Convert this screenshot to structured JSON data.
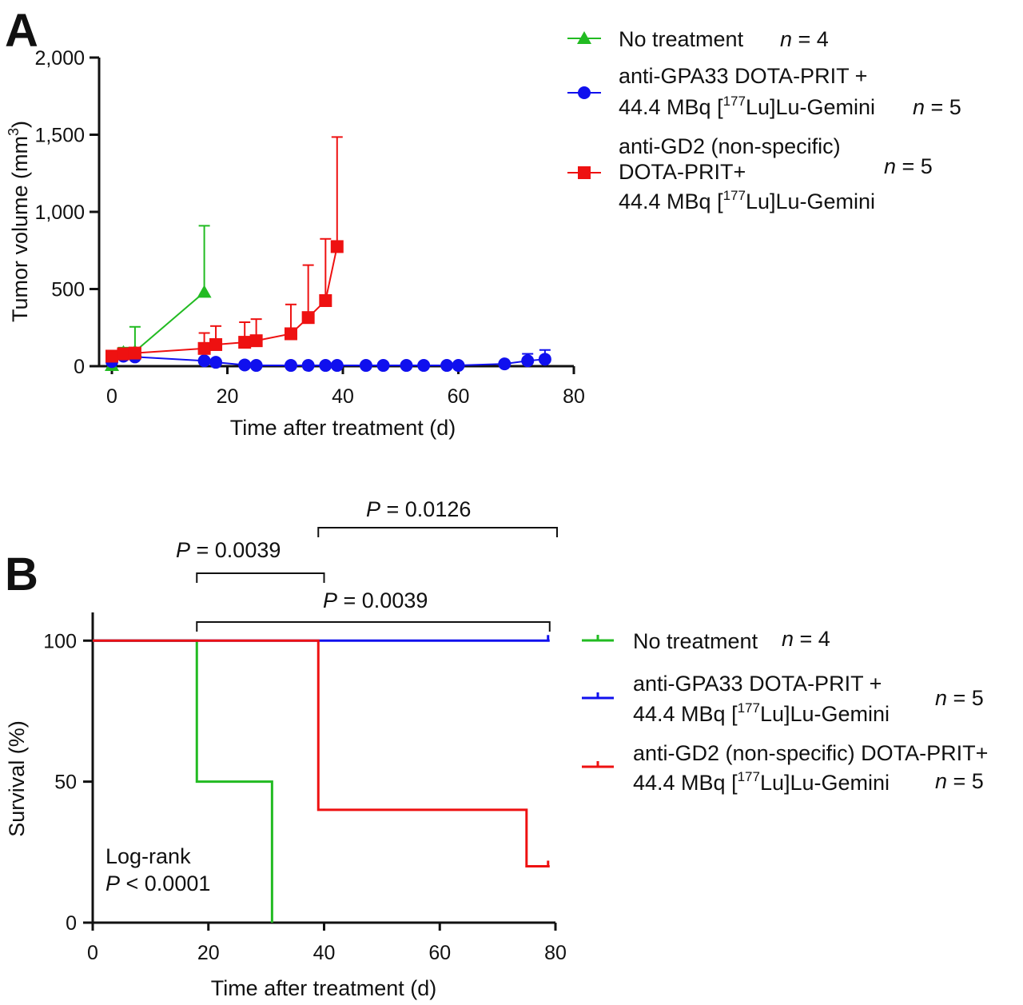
{
  "figure": {
    "panel_a": "A",
    "panel_b": "B"
  },
  "chart_data": [
    {
      "type": "line",
      "panel": "A",
      "xlabel": "Time after treatment (d)",
      "ylabel_main": "Tumor volume (mm",
      "ylabel_sup": "3",
      "ylabel_end": ")",
      "xlim": [
        0,
        80
      ],
      "ylim": [
        0,
        2000
      ],
      "xticks": [
        0,
        20,
        40,
        60,
        80
      ],
      "xtick_labels": [
        "0",
        "20",
        "40",
        "60",
        "80"
      ],
      "yticks": [
        0,
        500,
        1000,
        1500,
        2000
      ],
      "ytick_labels": [
        "0",
        "500",
        "1,000",
        "1,500",
        "2,000"
      ],
      "grid": false,
      "legend_position": "right",
      "series": [
        {
          "key": "notreat",
          "color": "#22bb22",
          "marker": "triangle",
          "legend": {
            "lines": [
              [
                {
                  "t": "No treatment"
                }
              ]
            ],
            "n": "= 4",
            "n_line": 0
          },
          "x": [
            0,
            2,
            4,
            16
          ],
          "y": [
            5,
            90,
            95,
            480
          ],
          "err": [
            0,
            30,
            160,
            430
          ]
        },
        {
          "key": "gpa33",
          "color": "#1010ee",
          "marker": "circle",
          "legend": {
            "lines": [
              [
                {
                  "t": "anti-GPA33 DOTA-PRIT +"
                }
              ],
              [
                {
                  "t": "44.4 MBq ["
                },
                {
                  "t": "177",
                  "sup": true
                },
                {
                  "t": "Lu]Lu-Gemini"
                }
              ]
            ],
            "n": "= 5",
            "n_line": 1
          },
          "x": [
            0,
            2,
            4,
            16,
            18,
            23,
            25,
            31,
            34,
            37,
            39,
            44,
            47,
            51,
            54,
            58,
            60,
            68,
            72,
            75
          ],
          "y": [
            30,
            65,
            60,
            35,
            25,
            8,
            5,
            5,
            5,
            5,
            5,
            5,
            5,
            5,
            5,
            5,
            5,
            15,
            35,
            45
          ],
          "err": [
            15,
            25,
            20,
            15,
            10,
            5,
            3,
            3,
            3,
            3,
            3,
            3,
            3,
            3,
            3,
            3,
            3,
            10,
            45,
            60
          ]
        },
        {
          "key": "gd2",
          "color": "#ee1111",
          "marker": "square",
          "legend": {
            "lines": [
              [
                {
                  "t": "anti-GD2 (non-specific)"
                }
              ],
              [
                {
                  "t": "DOTA-PRIT+"
                }
              ],
              [
                {
                  "t": "44.4 MBq ["
                },
                {
                  "t": "177",
                  "sup": true
                },
                {
                  "t": "Lu]Lu-Gemini"
                }
              ]
            ],
            "n": "= 5",
            "n_line": 1
          },
          "x": [
            0,
            2,
            4,
            16,
            18,
            23,
            25,
            31,
            34,
            37,
            39
          ],
          "y": [
            65,
            80,
            85,
            115,
            140,
            155,
            165,
            210,
            315,
            425,
            775
          ],
          "err": [
            20,
            30,
            30,
            100,
            120,
            130,
            140,
            190,
            340,
            400,
            710
          ]
        }
      ]
    },
    {
      "type": "line",
      "subtype": "kaplan-meier",
      "panel": "B",
      "xlabel": "Time after treatment (d)",
      "ylabel": "Survival (%)",
      "xlim": [
        0,
        80
      ],
      "ylim": [
        0,
        110
      ],
      "xticks": [
        0,
        20,
        40,
        60,
        80
      ],
      "xtick_labels": [
        "0",
        "20",
        "40",
        "60",
        "80"
      ],
      "yticks": [
        0,
        50,
        100
      ],
      "ytick_labels": [
        "0",
        "50",
        "100"
      ],
      "grid": false,
      "legend_position": "right",
      "series": [
        {
          "key": "notreat",
          "color": "#22bb22",
          "legend": {
            "lines": [
              [
                {
                  "t": "No treatment"
                }
              ]
            ],
            "n": "= 4",
            "n_line": 0
          },
          "steps": [
            [
              0,
              100
            ],
            [
              18,
              100
            ],
            [
              18,
              50
            ],
            [
              31,
              50
            ],
            [
              31,
              0
            ]
          ],
          "censor": []
        },
        {
          "key": "gpa33",
          "color": "#1010ee",
          "legend": {
            "lines": [
              [
                {
                  "t": "anti-GPA33 DOTA-PRIT +"
                }
              ],
              [
                {
                  "t": "44.4 MBq ["
                },
                {
                  "t": "177",
                  "sup": true
                },
                {
                  "t": "Lu]Lu-Gemini"
                }
              ]
            ],
            "n": "= 5",
            "n_line": 0.5
          },
          "steps": [
            [
              0,
              100
            ],
            [
              79,
              100
            ]
          ],
          "censor": [
            [
              79,
              100
            ]
          ]
        },
        {
          "key": "gd2",
          "color": "#ee1111",
          "legend": {
            "lines": [
              [
                {
                  "t": "anti-GD2 (non-specific) DOTA-PRIT+"
                }
              ],
              [
                {
                  "t": "44.4 MBq ["
                },
                {
                  "t": "177",
                  "sup": true
                },
                {
                  "t": "Lu]Lu-Gemini"
                }
              ]
            ],
            "n": "= 5",
            "n_line": 1
          },
          "steps": [
            [
              0,
              100
            ],
            [
              39,
              100
            ],
            [
              39,
              40
            ],
            [
              75,
              40
            ],
            [
              75,
              20
            ],
            [
              79,
              20
            ]
          ],
          "censor": [
            [
              79,
              20
            ]
          ]
        }
      ],
      "annotations": {
        "logrank_line1": "Log-rank",
        "logrank_p": "P",
        "logrank_val": " < 0.0001",
        "comparisons": [
          {
            "p": "P",
            "val": " = 0.0039",
            "x1": 18,
            "x2": 40,
            "level": 1
          },
          {
            "p": "P",
            "val": " = 0.0126",
            "x1": 39,
            "x2": 80,
            "level": 2
          },
          {
            "p": "P",
            "val": " = 0.0039",
            "x1": 18,
            "x2": 79,
            "level": 0
          }
        ]
      }
    }
  ]
}
